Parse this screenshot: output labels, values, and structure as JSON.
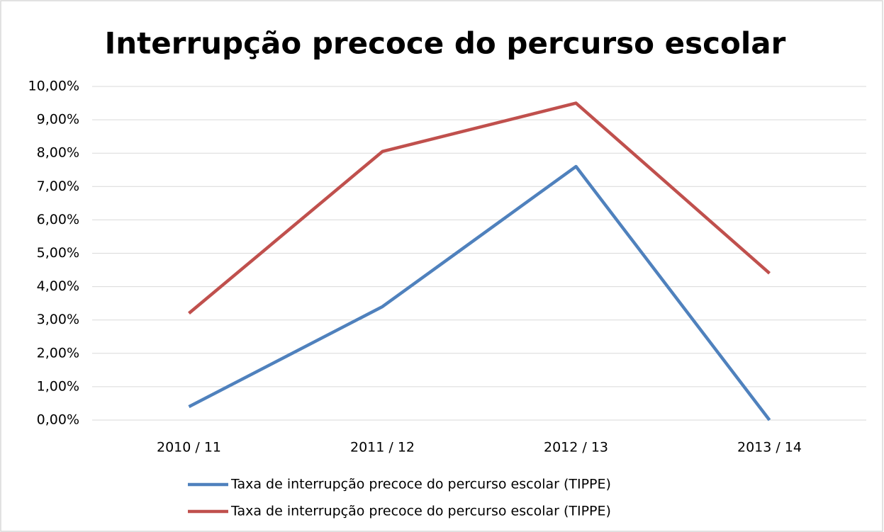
{
  "chart_data": {
    "type": "line",
    "title": "Interrupção precoce do percurso escolar",
    "categories": [
      "2010 / 11",
      "2011 / 12",
      "2012 / 13",
      "2013 / 14"
    ],
    "series": [
      {
        "name": "Taxa de interrupção precoce do percurso escolar (TIPPE)",
        "color": "#4f81bd",
        "values": [
          0.4,
          3.4,
          7.6,
          0
        ]
      },
      {
        "name": "Taxa de interrupção precoce do percurso escolar (TIPPE)",
        "color": "#c0504d",
        "values": [
          3.2,
          8.05,
          9.5,
          4.4
        ]
      }
    ],
    "ylim": [
      0,
      10
    ],
    "yticks": [
      {
        "value": 0,
        "label": "0,00%"
      },
      {
        "value": 1,
        "label": "1,00%"
      },
      {
        "value": 2,
        "label": "2,00%"
      },
      {
        "value": 3,
        "label": "3,00%"
      },
      {
        "value": 4,
        "label": "4,00%"
      },
      {
        "value": 5,
        "label": "5,00%"
      },
      {
        "value": 6,
        "label": "6,00%"
      },
      {
        "value": 7,
        "label": "7,00%"
      },
      {
        "value": 8,
        "label": "8,00%"
      },
      {
        "value": 9,
        "label": "9,00%"
      },
      {
        "value": 10,
        "label": "10,00%"
      }
    ],
    "grid": true,
    "legend": "bottom"
  }
}
